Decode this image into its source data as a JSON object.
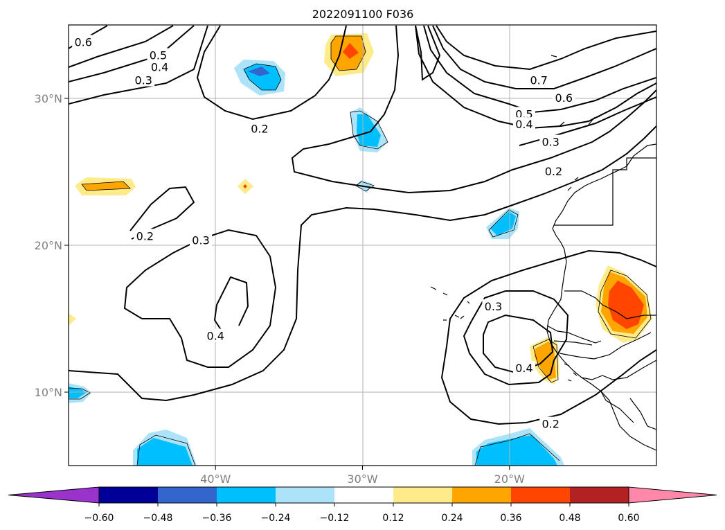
{
  "title": "2022091100 F036",
  "chart_data": {
    "type": "contour-map",
    "title": "2022091100 F036",
    "lon_range": [
      -50,
      -10
    ],
    "lat_range": [
      5,
      35
    ],
    "x_ticks": [
      {
        "lon": -40,
        "label": "40°W"
      },
      {
        "lon": -30,
        "label": "30°W"
      },
      {
        "lon": -20,
        "label": "20°W"
      }
    ],
    "y_ticks": [
      {
        "lat": 10,
        "label": "10°N"
      },
      {
        "lat": 20,
        "label": "20°N"
      },
      {
        "lat": 30,
        "label": "30°N"
      }
    ],
    "grid": true,
    "contour_labels": [
      {
        "text": "0.6",
        "lon": -49.0,
        "lat": 33.8
      },
      {
        "text": "0.5",
        "lon": -43.9,
        "lat": 32.9
      },
      {
        "text": "0.4",
        "lon": -43.8,
        "lat": 32.1
      },
      {
        "text": "0.3",
        "lon": -44.9,
        "lat": 31.2
      },
      {
        "text": "0.2",
        "lon": -37.0,
        "lat": 27.9
      },
      {
        "text": "0.2",
        "lon": -44.8,
        "lat": 20.6
      },
      {
        "text": "0.3",
        "lon": -41.0,
        "lat": 20.3
      },
      {
        "text": "0.4",
        "lon": -40.0,
        "lat": 13.8
      },
      {
        "text": "0.7",
        "lon": -18.0,
        "lat": 31.2
      },
      {
        "text": "0.6",
        "lon": -16.3,
        "lat": 30.0
      },
      {
        "text": "0.5",
        "lon": -19.0,
        "lat": 28.9
      },
      {
        "text": "0.4",
        "lon": -19.0,
        "lat": 28.2
      },
      {
        "text": "0.3",
        "lon": -17.2,
        "lat": 27.0
      },
      {
        "text": "0.2",
        "lon": -17.0,
        "lat": 25.0
      },
      {
        "text": "0.3",
        "lon": -21.1,
        "lat": 15.8
      },
      {
        "text": "0.4",
        "lon": -19.0,
        "lat": 11.6
      },
      {
        "text": "0.2",
        "lon": -17.2,
        "lat": 7.8
      }
    ],
    "colorbar": {
      "ticks": [
        "−0.60",
        "−0.48",
        "−0.36",
        "−0.24",
        "−0.12",
        "0.12",
        "0.24",
        "0.36",
        "0.48",
        "0.60"
      ],
      "levels": [
        -0.6,
        -0.48,
        -0.36,
        -0.24,
        -0.12,
        0.12,
        0.24,
        0.36,
        0.48,
        0.6
      ],
      "colors": [
        "#9933cc",
        "#000099",
        "#3366cc",
        "#00bfff",
        "#ade3f8",
        "#ffffff",
        "#ffeb8a",
        "#ffa500",
        "#ff4500",
        "#b22222",
        "#ff88aa"
      ],
      "extend": "both"
    }
  }
}
